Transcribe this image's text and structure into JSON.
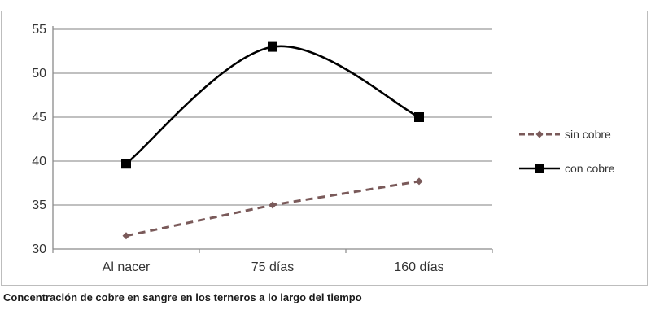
{
  "caption": "Concentración de cobre en sangre en los terneros a lo largo del tiempo",
  "chart_data": {
    "type": "line",
    "title": "",
    "xlabel": "",
    "ylabel": "",
    "categories": [
      "Al nacer",
      "75 días",
      "160 días"
    ],
    "ylim": [
      30,
      55
    ],
    "yticks": [
      30,
      35,
      40,
      45,
      50,
      55
    ],
    "ytick_labels": [
      "30",
      "35",
      "40",
      "45",
      "50",
      "55"
    ],
    "grid": true,
    "legend_position": "right",
    "series": [
      {
        "name": "sin cobre",
        "values": [
          31.5,
          35,
          37.7
        ],
        "color": "#7a5a5a",
        "line_style": "dashed",
        "marker": "diamond",
        "smooth": false
      },
      {
        "name": "con cobre",
        "values": [
          39.7,
          53,
          45
        ],
        "color": "#000000",
        "line_style": "solid",
        "marker": "square",
        "smooth": true
      }
    ]
  }
}
